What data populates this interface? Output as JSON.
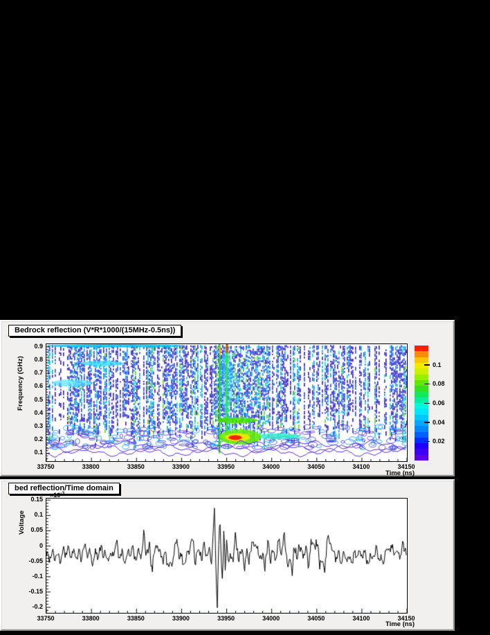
{
  "window": {
    "background": "#000000",
    "panel_color": "#f1f0ee"
  },
  "chart_data": [
    {
      "type": "heatmap",
      "title": "Bedrock reflection (V*R*1000/(15MHz-0.5ns))",
      "xlabel": "Time (ns)",
      "ylabel": "Frequency (GHz)",
      "x_range": [
        33750,
        34150
      ],
      "y_range": [
        0.04,
        0.92
      ],
      "x_ticks": [
        33750,
        33800,
        33850,
        33900,
        33950,
        34000,
        34050,
        34100,
        34150
      ],
      "x_minor_step": 10,
      "y_ticks": [
        0.1,
        0.2,
        0.3,
        0.4,
        0.5,
        0.6,
        0.7,
        0.8,
        0.9
      ],
      "y_minor_step": 0.02,
      "grid": false,
      "legend_position": "right-colorbar",
      "colorbar": {
        "range": [
          0,
          0.12
        ],
        "ticks": [
          0.02,
          0.04,
          0.06,
          0.08,
          0.1
        ],
        "colors": [
          "#5c00e8",
          "#3c00f2",
          "#1e00fa",
          "#0030ff",
          "#0060ff",
          "#0088ff",
          "#00a8ff",
          "#00c8ff",
          "#00e6ff",
          "#00f8dc",
          "#00f0a0",
          "#14e85c",
          "#34e020",
          "#60e800",
          "#98f000",
          "#ccf000",
          "#f4e800",
          "#ffc400",
          "#ff8c00",
          "#ff2000"
        ]
      },
      "description": "Dense vertical blue/cyan interference streaks over white; broadband pulse near t=33945 ns (green vertical ridges, red tip at top); red hotspot 0.20-0.24 GHz at t=33950-33970 ringed by yellow/green; green band 0.33-0.37 GHz t=33940-33980; cyan band extension 0.21-0.25 GHz to t=34030; purple low-level contour squiggles below 0.18 GHz across full width.",
      "features": [
        {
          "kind": "blob",
          "t0": 33750,
          "t1": 33905,
          "f0": 0.895,
          "f1": 0.92,
          "color": "#00c0e8",
          "alpha": 0.85
        },
        {
          "kind": "blob",
          "t0": 33788,
          "t1": 33836,
          "f0": 0.755,
          "f1": 0.795,
          "color": "#33dcff",
          "alpha": 0.8
        },
        {
          "kind": "blob",
          "t0": 33756,
          "t1": 33802,
          "f0": 0.6,
          "f1": 0.655,
          "color": "#55e4ff",
          "alpha": 0.7
        },
        {
          "kind": "blob",
          "t0": 33942,
          "t1": 33957,
          "f0": 0.4,
          "f1": 0.88,
          "color": "#22ccff",
          "alpha": 0.45
        },
        {
          "kind": "vline",
          "t": 33942,
          "f0": 0.1,
          "f1": 0.92,
          "w": 2.5,
          "color": "#22d822"
        },
        {
          "kind": "vline",
          "t": 33950,
          "f0": 0.18,
          "f1": 0.92,
          "w": 2.5,
          "color": "#33e433"
        },
        {
          "kind": "vline",
          "t": 33950.5,
          "f0": 0.855,
          "f1": 0.92,
          "w": 2.6,
          "color": "#ff3300"
        },
        {
          "kind": "vline",
          "t": 33942.5,
          "f0": 0.84,
          "f1": 0.9,
          "w": 2.0,
          "color": "#ffaa00"
        },
        {
          "kind": "blob",
          "t0": 33938,
          "t1": 33984,
          "f0": 0.325,
          "f1": 0.37,
          "color": "#44e400",
          "alpha": 0.85
        },
        {
          "kind": "blob",
          "t0": 33984,
          "t1": 34032,
          "f0": 0.205,
          "f1": 0.25,
          "color": "#33f0c8",
          "alpha": 0.8
        },
        {
          "kind": "blob",
          "t0": 33942,
          "t1": 33988,
          "f0": 0.165,
          "f1": 0.28,
          "color": "#66ee00",
          "alpha": 0.85
        },
        {
          "kind": "blob",
          "t0": 33948,
          "t1": 33976,
          "f0": 0.19,
          "f1": 0.25,
          "color": "#f0e800",
          "alpha": 0.95
        },
        {
          "kind": "blob",
          "t0": 33952,
          "t1": 33967,
          "f0": 0.2,
          "f1": 0.235,
          "color": "#ff2200",
          "alpha": 1
        }
      ],
      "render": {
        "seed": 1234,
        "column_step": 2,
        "contour_color": "#5a2fd6"
      }
    },
    {
      "type": "line",
      "title": "bed reflection/Time domain",
      "xlabel": "Time (ns)",
      "ylabel": "Voltage",
      "y_exponent": {
        "base": "×10",
        "sup": "-3"
      },
      "x_range": [
        33750,
        34150
      ],
      "y_range": [
        -0.218,
        0.155
      ],
      "x_ticks": [
        33750,
        33800,
        33850,
        33900,
        33950,
        34000,
        34050,
        34100,
        34150
      ],
      "x_minor_step": 10,
      "y_ticks": [
        [
          0.15,
          "0.15"
        ],
        [
          0.1,
          "0.1"
        ],
        [
          0.05,
          "0.05"
        ],
        [
          0,
          "0"
        ],
        [
          -0.05,
          "-0.05"
        ],
        [
          -0.1,
          "-0.1"
        ],
        [
          -0.15,
          "-0.15"
        ],
        [
          -0.2,
          "-0.2"
        ]
      ],
      "y_minor_step": 0.01,
      "line_color": "#000000",
      "baseline": -0.027,
      "noise_zones": [
        {
          "from": 33750,
          "to": 33858,
          "amp": 0.016
        },
        {
          "from": 33858,
          "to": 33930,
          "amp": 0.024
        },
        {
          "from": 33956,
          "to": 34068,
          "amp": 0.026
        },
        {
          "from": 34068,
          "to": 34150,
          "amp": 0.017
        }
      ],
      "burst_key_points": [
        [
          33929,
          -0.03
        ],
        [
          33931,
          0.0
        ],
        [
          33933,
          -0.07
        ],
        [
          33935,
          0.04
        ],
        [
          33936.5,
          0.13
        ],
        [
          33938,
          -0.06
        ],
        [
          33939.5,
          -0.215
        ],
        [
          33941,
          -0.01
        ],
        [
          33942.5,
          0.1
        ],
        [
          33944,
          -0.05
        ],
        [
          33945.5,
          -0.12
        ],
        [
          33947,
          0.075
        ],
        [
          33948.5,
          -0.09
        ],
        [
          33950,
          0.02
        ],
        [
          33952,
          -0.06
        ],
        [
          33954,
          -0.02
        ]
      ],
      "description": "Noisy oscillation around -0.03 with a strong wavelet burst at t≈33940 ns reaching +0.13 and -0.215 (×10^-3 V); enhanced noise after the burst until ~34070 ns.",
      "render": {
        "seed": 99,
        "dt": 0.8
      }
    }
  ]
}
